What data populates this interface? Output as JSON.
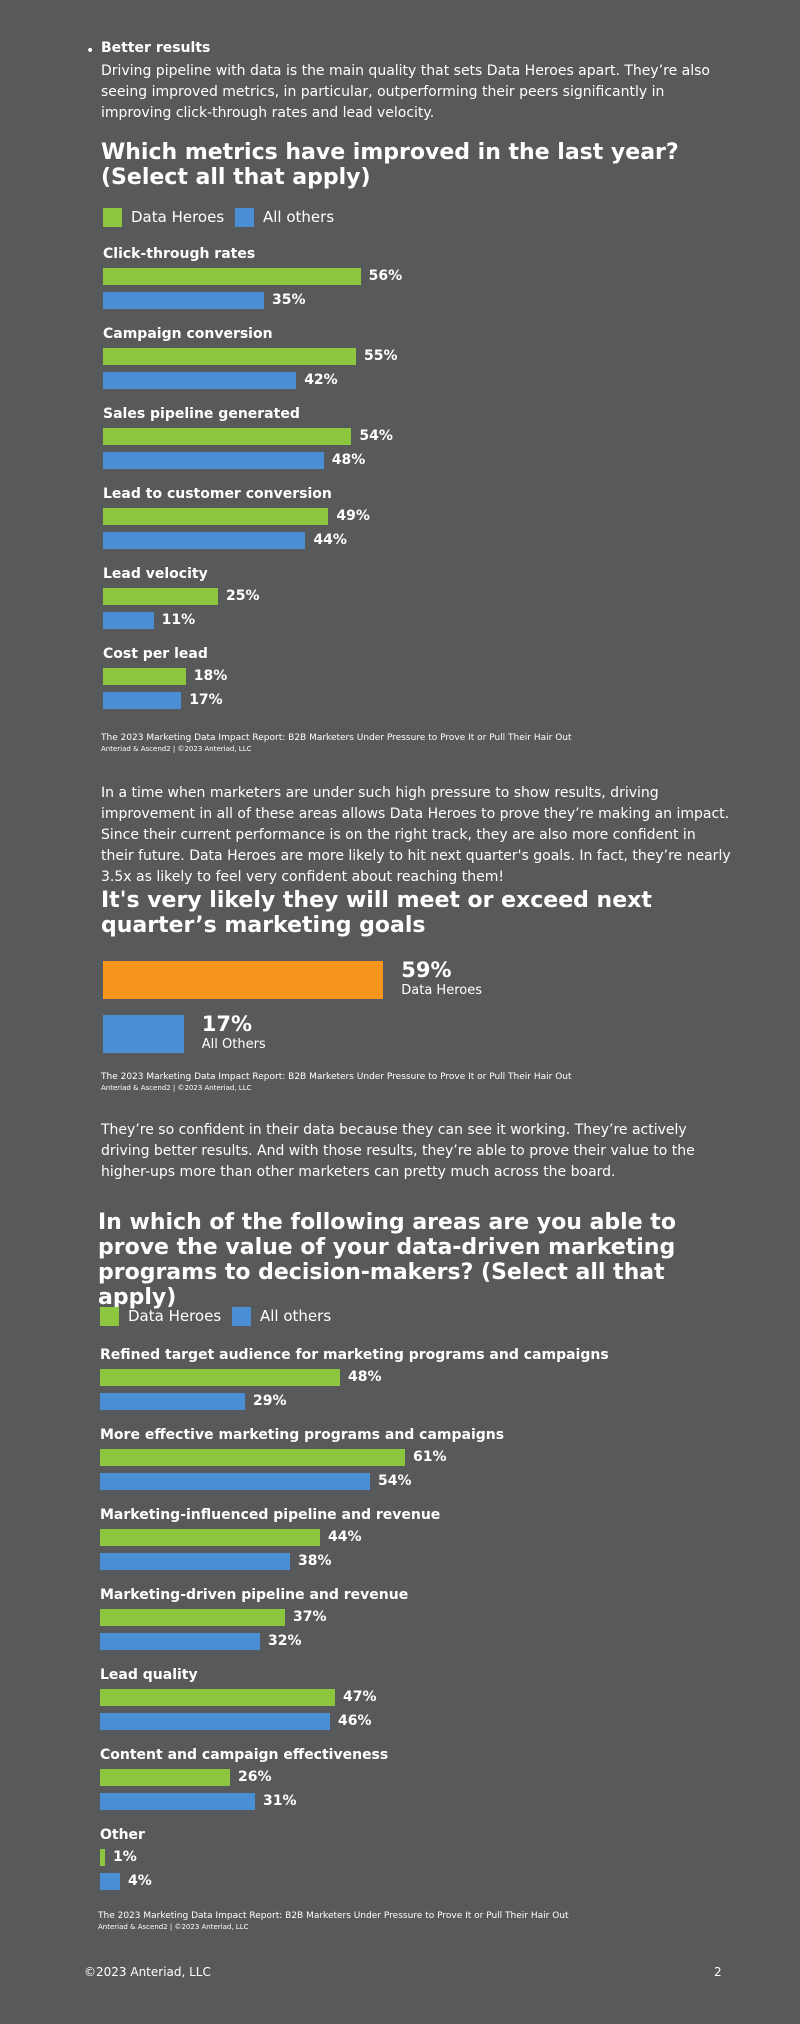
{
  "bullet": {
    "title": "Better results",
    "text": "Driving pipeline with data is the main quality that sets Data Heroes apart. They’re also seeing improved metrics, in particular, outperforming their peers significantly in improving click-through rates and lead velocity."
  },
  "paragraphs": [
    "In a time when marketers are under such high pressure to show results, driving improvement in all of these areas allows Data Heroes to prove they’re making an impact. Since their current performance is on the right track, they are also more confident in their future. Data Heroes are more likely to hit next quarter's goals. In fact, they’re nearly 3.5x as likely to feel very confident about reaching them!",
    "They’re so confident in their data because they can see it working. They’re actively driving better results. And with those results, they’re able to prove their value to the higher-ups more than other marketers can pretty much across the board."
  ],
  "chart_data": [
    {
      "type": "bar",
      "title": "Which metrics have improved in the last year? (Select all that apply)",
      "categories": [
        "Click-through rates",
        "Campaign conversion",
        "Sales pipeline generated",
        "Lead to customer conversion",
        "Lead velocity",
        "Cost per lead"
      ],
      "series": [
        {
          "name": "Data Heroes",
          "color": "#8dc63f",
          "values": [
            56,
            55,
            54,
            49,
            25,
            18
          ],
          "value_labels": [
            "56%",
            "55%",
            "54%",
            "49%",
            "25%",
            "18%"
          ]
        },
        {
          "name": "All others",
          "color": "#4a8fd6",
          "values": [
            35,
            42,
            48,
            44,
            11,
            17
          ],
          "value_labels": [
            "35%",
            "42%",
            "48%",
            "44%",
            "11%",
            "17%"
          ]
        }
      ],
      "source": [
        "The 2023 Marketing Data Impact Report: B2B Marketers Under Pressure to Prove It or Pull Their Hair Out",
        "Anteriad & Ascend2 | ©2023 Anteriad, LLC"
      ]
    },
    {
      "type": "single-bar",
      "title": "It's very likely they will meet or exceed next quarter’s marketing goals",
      "categories": [
        "Data Heroes",
        "All Others"
      ],
      "values": [
        59,
        17
      ],
      "value_labels": [
        "59%",
        "17%"
      ],
      "colors": [
        "#f7941d",
        "#4a8fd6"
      ],
      "source": [
        "The 2023 Marketing Data Impact Report: B2B Marketers Under Pressure to Prove It or Pull Their Hair Out",
        "Anteriad & Ascend2 | ©2023 Anteriad, LLC"
      ]
    },
    {
      "type": "bar",
      "title": "In which of the following areas are you able to prove the value of your data-driven marketing programs to decision-makers? (Select all that apply)",
      "categories": [
        "Refined target audience for marketing programs and campaigns",
        "More effective marketing programs and campaigns",
        "Marketing-influenced pipeline and revenue",
        "Marketing-driven pipeline and revenue",
        "Lead quality",
        "Content and campaign effectiveness",
        "Other"
      ],
      "series": [
        {
          "name": "Data Heroes",
          "color": "#8dc63f",
          "values": [
            48,
            61,
            44,
            37,
            47,
            26,
            1
          ],
          "value_labels": [
            "48%",
            "61%",
            "44%",
            "37%",
            "47%",
            "26%",
            "1%"
          ]
        },
        {
          "name": "All others",
          "color": "#4a8fd6",
          "values": [
            29,
            54,
            38,
            32,
            46,
            31,
            4
          ],
          "value_labels": [
            "29%",
            "54%",
            "38%",
            "32%",
            "46%",
            "31%",
            "4%"
          ]
        }
      ],
      "source": [
        "The 2023 Marketing Data Impact Report: B2B Marketers Under Pressure to Prove It or Pull Their Hair Out",
        "Anteriad & Ascend2 | ©2023 Anteriad, LLC"
      ]
    }
  ],
  "footer": {
    "copyright": "©2023 Anteriad, LLC",
    "page": "2"
  }
}
